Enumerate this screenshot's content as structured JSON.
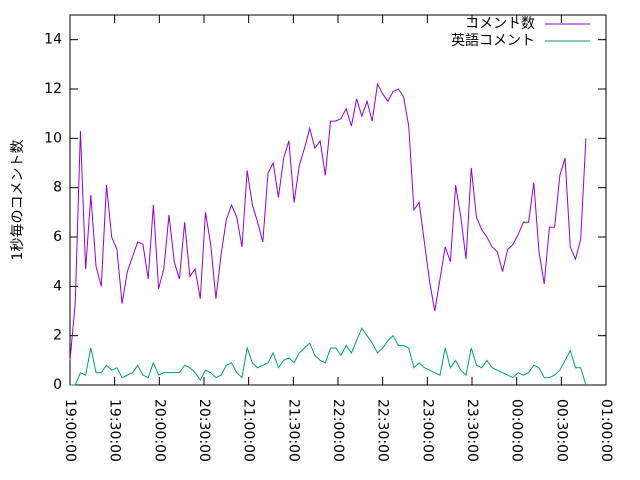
{
  "chart_data": {
    "type": "line",
    "ylabel": "1秒毎のコメント数",
    "xlim": [
      "19:00:00",
      "01:00:00"
    ],
    "xticks": [
      "19:00:00",
      "19:30:00",
      "20:00:00",
      "20:30:00",
      "21:00:00",
      "21:30:00",
      "22:00:00",
      "22:30:00",
      "23:00:00",
      "23:30:00",
      "00:00:00",
      "00:30:00",
      "01:00:00"
    ],
    "ylim": [
      0,
      15
    ],
    "yticks": [
      0,
      2,
      4,
      6,
      8,
      10,
      12,
      14
    ],
    "legend": "top-right",
    "x": [
      "19:00:00",
      "19:03:30",
      "19:07:00",
      "19:10:30",
      "19:14:00",
      "19:17:30",
      "19:21:00",
      "19:24:30",
      "19:28:00",
      "19:31:30",
      "19:35:00",
      "19:38:30",
      "19:42:00",
      "19:45:30",
      "19:49:00",
      "19:52:30",
      "19:56:00",
      "19:59:30",
      "20:03:00",
      "20:06:30",
      "20:10:00",
      "20:13:30",
      "20:17:00",
      "20:20:30",
      "20:24:00",
      "20:27:30",
      "20:31:00",
      "20:34:30",
      "20:38:00",
      "20:41:30",
      "20:45:00",
      "20:48:30",
      "20:52:00",
      "20:55:30",
      "20:59:00",
      "21:02:30",
      "21:06:00",
      "21:09:30",
      "21:13:00",
      "21:16:30",
      "21:20:00",
      "21:23:30",
      "21:27:00",
      "21:30:30",
      "21:34:00",
      "21:37:30",
      "21:41:00",
      "21:44:30",
      "21:48:00",
      "21:51:30",
      "21:55:00",
      "21:58:30",
      "22:02:00",
      "22:05:30",
      "22:09:00",
      "22:12:30",
      "22:16:00",
      "22:19:30",
      "22:23:00",
      "22:26:30",
      "22:30:00",
      "22:33:30",
      "22:37:00",
      "22:40:30",
      "22:44:00",
      "22:47:30",
      "22:51:00",
      "22:54:30",
      "22:58:00",
      "23:01:30",
      "23:05:00",
      "23:08:30",
      "23:12:00",
      "23:15:30",
      "23:19:00",
      "23:22:30",
      "23:26:00",
      "23:29:30",
      "23:33:00",
      "23:36:30",
      "23:40:00",
      "23:43:30",
      "23:47:00",
      "23:50:30",
      "23:54:00",
      "23:57:30",
      "00:01:00",
      "00:04:30",
      "00:08:00",
      "00:11:30",
      "00:15:00",
      "00:18:30",
      "00:22:00",
      "00:25:30",
      "00:29:00",
      "00:32:30",
      "00:36:00",
      "00:39:30",
      "00:43:00",
      "00:46:30"
    ],
    "series": [
      {
        "name": "コメント数",
        "color": "#9400d3",
        "values": [
          1.0,
          3.3,
          10.3,
          4.7,
          7.7,
          4.8,
          4.0,
          8.1,
          6.0,
          5.5,
          3.3,
          4.6,
          5.2,
          5.8,
          5.7,
          4.3,
          7.3,
          3.9,
          4.7,
          6.9,
          5.0,
          4.3,
          6.6,
          4.4,
          4.7,
          3.5,
          7.0,
          5.7,
          3.5,
          5.3,
          6.7,
          7.3,
          6.8,
          5.6,
          8.7,
          7.3,
          6.6,
          5.8,
          8.6,
          9.0,
          7.6,
          9.2,
          9.9,
          7.4,
          8.9,
          9.6,
          10.4,
          9.6,
          9.9,
          8.5,
          10.7,
          10.7,
          10.8,
          11.2,
          10.5,
          11.6,
          10.9,
          11.5,
          10.7,
          12.2,
          11.8,
          11.5,
          11.9,
          12.0,
          11.7,
          10.5,
          7.1,
          7.4,
          5.8,
          4.2,
          3.0,
          4.3,
          5.6,
          5.0,
          8.1,
          6.8,
          5.1,
          8.8,
          6.8,
          6.3,
          6.0,
          5.6,
          5.4,
          4.6,
          5.5,
          5.7,
          6.1,
          6.6,
          6.6,
          8.2,
          5.4,
          4.1,
          6.4,
          6.4,
          8.5,
          9.2,
          5.6,
          5.1,
          5.9,
          10.0
        ]
      },
      {
        "name": "英語コメント",
        "color": "#009e73",
        "values": [
          0,
          0,
          0.5,
          0.4,
          1.5,
          0.5,
          0.5,
          0.8,
          0.6,
          0.7,
          0.3,
          0.4,
          0.5,
          0.8,
          0.4,
          0.3,
          0.9,
          0.4,
          0.5,
          0.5,
          0.5,
          0.5,
          0.8,
          0.7,
          0.5,
          0.2,
          0.6,
          0.5,
          0.3,
          0.4,
          0.8,
          0.9,
          0.5,
          0.3,
          1.5,
          0.9,
          0.7,
          0.8,
          0.9,
          1.3,
          0.7,
          1.0,
          1.1,
          0.9,
          1.3,
          1.5,
          1.7,
          1.2,
          1.0,
          0.9,
          1.5,
          1.5,
          1.2,
          1.6,
          1.3,
          1.8,
          2.3,
          2.0,
          1.7,
          1.3,
          1.5,
          1.8,
          2.0,
          1.6,
          1.6,
          1.5,
          0.7,
          0.9,
          0.7,
          0.6,
          0.5,
          0.4,
          1.5,
          0.7,
          1.0,
          0.6,
          0.4,
          1.5,
          0.8,
          0.7,
          1.0,
          0.7,
          0.6,
          0.5,
          0.4,
          0.3,
          0.5,
          0.4,
          0.5,
          0.8,
          0.7,
          0.3,
          0.3,
          0.4,
          0.6,
          1.0,
          1.4,
          0.7,
          0.7,
          0.0
        ]
      }
    ]
  }
}
